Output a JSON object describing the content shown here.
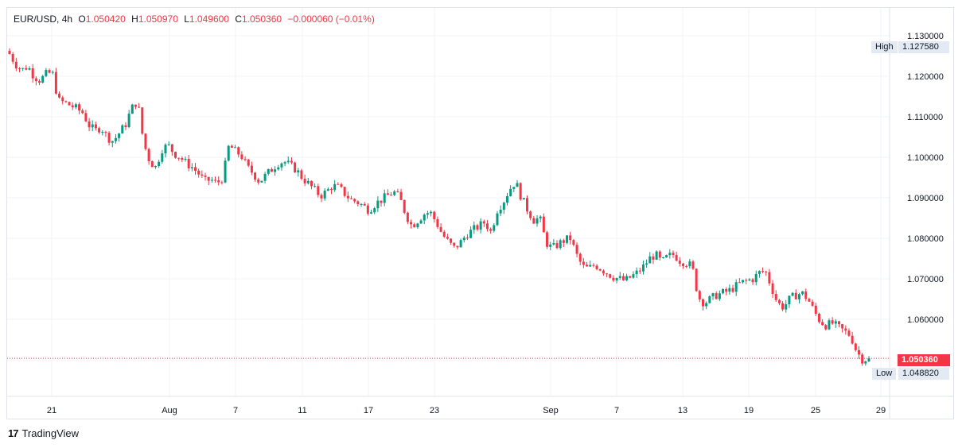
{
  "legend": {
    "symbol": "EUR/USD",
    "interval": "4h",
    "open_label": "O",
    "open": "1.050420",
    "high_label": "H",
    "high": "1.050970",
    "low_label": "L",
    "low": "1.049600",
    "close_label": "C",
    "close": "1.050360",
    "change": "−0.000060 (−0.01%)"
  },
  "markers": {
    "high_label": "High",
    "high_value": "1.127580",
    "low_label": "Low",
    "low_value": "1.048820",
    "last_value": "1.050360"
  },
  "brand": {
    "logo": "17",
    "name": "TradingView"
  },
  "colors": {
    "up": "#089981",
    "down": "#f23645",
    "grid": "#f0f3fa"
  },
  "chart_data": {
    "type": "candlestick",
    "y_ticks": [
      "1.130000",
      "1.120000",
      "1.110000",
      "1.100000",
      "1.090000",
      "1.080000",
      "1.070000",
      "1.060000",
      "1.050000"
    ],
    "ylim": [
      1.0445,
      1.1325
    ],
    "x_ticks": [
      "21",
      "Aug",
      "7",
      "11",
      "17",
      "23",
      "Sep",
      "7",
      "13",
      "19",
      "25",
      "29"
    ],
    "last_price": 1.05036,
    "period_high": 1.12758,
    "period_low": 1.04882,
    "close_path": [
      1.1255,
      1.123,
      1.1215,
      1.1225,
      1.12,
      1.119,
      1.1205,
      1.121,
      1.114,
      1.1135,
      1.1128,
      1.112,
      1.111,
      1.108,
      1.1065,
      1.1075,
      1.105,
      1.104,
      1.106,
      1.108,
      1.112,
      1.114,
      1.1035,
      1.099,
      1.0975,
      1.102,
      1.103,
      1.101,
      1.1,
      1.0985,
      1.0975,
      1.096,
      1.094,
      1.0945,
      1.0935,
      1.095,
      1.103,
      1.1015,
      1.1005,
      1.0975,
      1.096,
      1.094,
      1.0955,
      1.097,
      1.0985,
      1.099,
      1.098,
      1.097,
      1.095,
      1.0935,
      1.092,
      1.0905,
      1.0915,
      1.093,
      1.0925,
      1.091,
      1.0895,
      1.089,
      1.088,
      1.087,
      1.0885,
      1.0895,
      1.0905,
      1.0915,
      1.09,
      1.086,
      1.083,
      1.0845,
      1.086,
      1.0865,
      1.084,
      1.081,
      1.079,
      1.0775,
      1.079,
      1.081,
      1.082,
      1.083,
      1.084,
      1.0815,
      1.087,
      1.089,
      1.092,
      1.094,
      1.09,
      1.087,
      1.0845,
      1.085,
      1.079,
      1.0775,
      1.0785,
      1.0795,
      1.08,
      1.076,
      1.073,
      1.0725,
      1.0735,
      1.0725,
      1.0715,
      1.0705,
      1.07,
      1.0695,
      1.0705,
      1.0715,
      1.073,
      1.075,
      1.076,
      1.074,
      1.0755,
      1.076,
      1.0745,
      1.074,
      1.073,
      1.0655,
      1.064,
      1.065,
      1.066,
      1.0665,
      1.067,
      1.068,
      1.069,
      1.0695,
      1.07,
      1.0715,
      1.072,
      1.068,
      1.064,
      1.063,
      1.065,
      1.066,
      1.0665,
      1.065,
      1.062,
      1.0595,
      1.0585,
      1.059,
      1.058,
      1.057,
      1.056,
      1.052,
      1.05,
      1.0504
    ]
  }
}
